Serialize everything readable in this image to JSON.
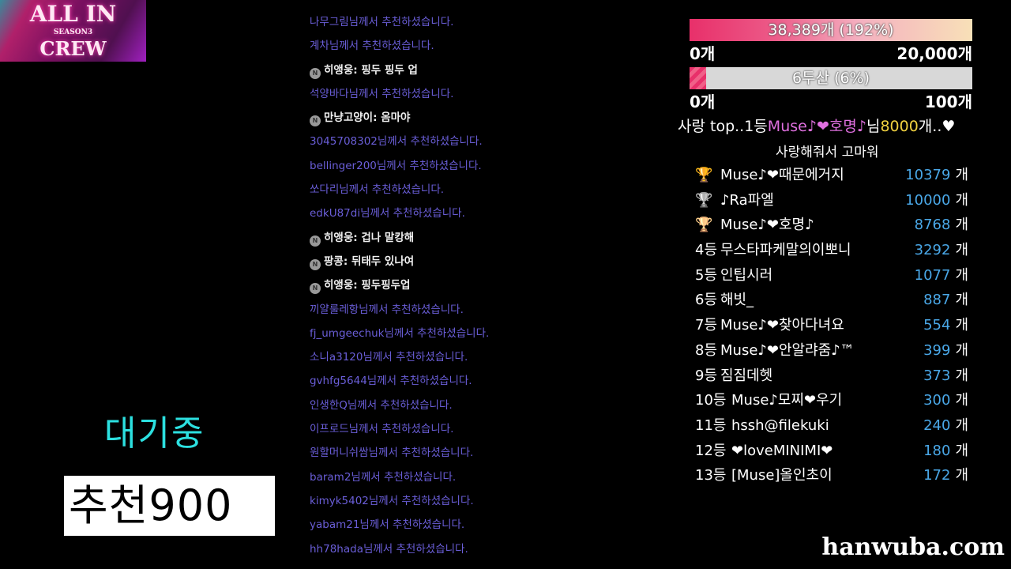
{
  "logo": {
    "line1": "ALL IN",
    "line2": "SEASON3",
    "line3": "CREW"
  },
  "status_text": "대기중",
  "recommend_label": "추천900",
  "chat": [
    {
      "type": "sys",
      "text": "나무그림님께서 추천하셨습니다."
    },
    {
      "type": "sys",
      "text": "계차님께서 추천하셨습니다."
    },
    {
      "type": "usr",
      "text": "히앵웅:  핑두 핑두 업"
    },
    {
      "type": "sys",
      "text": "석양바다님께서 추천하셨습니다."
    },
    {
      "type": "usr",
      "text": "만냥고양이:  옴마야"
    },
    {
      "type": "sys",
      "text": "3045708302님께서 추천하셨습니다."
    },
    {
      "type": "sys",
      "text": "bellinger200님께서 추천하셨습니다."
    },
    {
      "type": "sys",
      "text": "쏘다리님께서 추천하셨습니다."
    },
    {
      "type": "sys",
      "text": "edkU87di님께서 추천하셨습니다."
    },
    {
      "type": "usr",
      "text": "히앵웅:  겁나 말캉해"
    },
    {
      "type": "usr",
      "text": "팡콩:  뒤태두 있나여"
    },
    {
      "type": "usr",
      "text": "히앵웅:  핑두핑두업"
    },
    {
      "type": "sys",
      "text": "끼얄룰레항님께서 추천하셨습니다."
    },
    {
      "type": "sys",
      "text": "fj_umgeechuk님께서 추천하셨습니다."
    },
    {
      "type": "sys",
      "text": "소니a3120님께서 추천하셨습니다."
    },
    {
      "type": "sys",
      "text": "gvhfg5644님께서 추천하셨습니다."
    },
    {
      "type": "sys",
      "text": "인생한Q님께서 추천하셨습니다."
    },
    {
      "type": "sys",
      "text": "이프로드님께서 추천하셨습니다."
    },
    {
      "type": "sys",
      "text": "원할머니쉬쌈님께서 추천하셨습니다."
    },
    {
      "type": "sys",
      "text": "baram2님께서 추천하셨습니다."
    },
    {
      "type": "sys",
      "text": "kimyk5402님께서 추천하셨습니다."
    },
    {
      "type": "sys",
      "text": "yabam21님께서 추천하셨습니다."
    },
    {
      "type": "sys",
      "text": "hh78hada님께서 추천하셨습니다."
    }
  ],
  "goal1": {
    "label": "38,389개 (192%)",
    "percent": 192,
    "min": "0개",
    "max": "20,000개"
  },
  "goal2": {
    "label": "6두산 (6%)",
    "percent": 6,
    "min": "0개",
    "max": "100개"
  },
  "love_top": {
    "prefix": "사랑 top..1등",
    "name": "Muse♪❤호명♪",
    "mid": "님",
    "amount": "8000",
    "suffix": "개..♥"
  },
  "thanks_title": "사랑해줘서 고마워",
  "ranking": [
    {
      "pos": "",
      "trophy": "gold",
      "name": "Muse♪❤때문에거지",
      "count": "10379",
      "unit": "개"
    },
    {
      "pos": "",
      "trophy": "silver",
      "name": "♪Ra파엘",
      "count": "10000",
      "unit": "개"
    },
    {
      "pos": "",
      "trophy": "bronze",
      "name": "Muse♪❤호명♪",
      "count": "8768",
      "unit": "개"
    },
    {
      "pos": "4등",
      "name": "무스타파케말의이뽀니",
      "count": "3292",
      "unit": "개"
    },
    {
      "pos": "5등",
      "name": "인팁시러",
      "count": "1077",
      "unit": "개"
    },
    {
      "pos": "6등",
      "name": "해빗_",
      "count": "887",
      "unit": "개"
    },
    {
      "pos": "7등",
      "name": "Muse♪❤찾아다녀요",
      "count": "554",
      "unit": "개"
    },
    {
      "pos": "8등",
      "name": "Muse♪❤안알랴줌♪™",
      "count": "399",
      "unit": "개"
    },
    {
      "pos": "9등",
      "name": "짐짐데헷",
      "count": "373",
      "unit": "개"
    },
    {
      "pos": "10등",
      "name": "Muse♪모찌❤우기",
      "count": "300",
      "unit": "개"
    },
    {
      "pos": "11등",
      "name": "hssh@filekuki",
      "count": "240",
      "unit": "개"
    },
    {
      "pos": "12등",
      "name": "❤loveMINIMI❤",
      "count": "180",
      "unit": "개"
    },
    {
      "pos": "13등",
      "name": "[Muse]올인초이",
      "count": "172",
      "unit": "개"
    }
  ],
  "colors": {
    "gold": "#e8c020",
    "silver": "#b8b8b8",
    "bronze": "#c07830",
    "count": "#4aa8e8",
    "system_chat": "#6a5ed8",
    "standby": "#2ce0e0"
  },
  "watermark": "hanwuba.com"
}
